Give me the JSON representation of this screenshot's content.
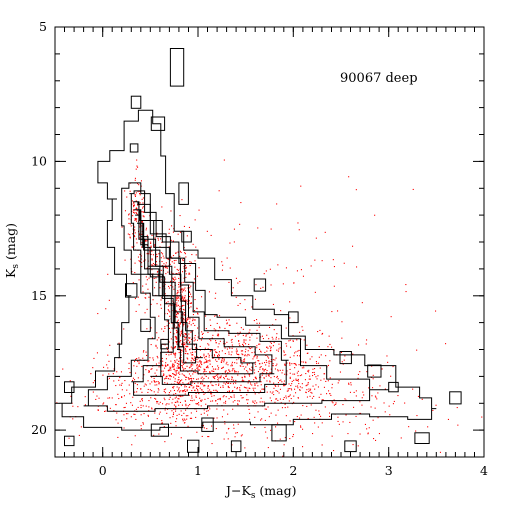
{
  "chart_data": {
    "type": "scatter",
    "title": "",
    "annotation": "90067 deep",
    "xlabel": {
      "main": "J−K",
      "sub": "s",
      "tail": " (mag)"
    },
    "ylabel": {
      "main": "K",
      "sub": "s",
      "tail": " (mag)"
    },
    "xlim": [
      -0.5,
      4
    ],
    "ylim": [
      21,
      5
    ],
    "y_inverted": true,
    "grid": false,
    "x_major_ticks": [
      0,
      1,
      2,
      3,
      4
    ],
    "y_major_ticks": [
      5,
      10,
      15,
      20
    ],
    "x_minor_step": 0.1,
    "y_minor_step": 1,
    "series": [
      {
        "kind": "points",
        "color": "#ff0000",
        "point_count_estimate": 2500,
        "description_regions": [
          {
            "x": 0.35,
            "y": 12.0,
            "sx": 0.05,
            "sy": 0.7,
            "n": 120
          },
          {
            "x": 0.55,
            "y": 13.8,
            "sx": 0.12,
            "sy": 0.8,
            "n": 160
          },
          {
            "x": 0.82,
            "y": 15.8,
            "sx": 0.08,
            "sy": 1.3,
            "n": 420
          },
          {
            "x": 0.95,
            "y": 17.6,
            "sx": 0.35,
            "sy": 0.7,
            "n": 380
          },
          {
            "x": 1.55,
            "y": 17.4,
            "sx": 0.4,
            "sy": 0.7,
            "n": 420
          },
          {
            "x": 0.6,
            "y": 18.6,
            "sx": 0.4,
            "sy": 0.7,
            "n": 300
          },
          {
            "x": 2.1,
            "y": 18.3,
            "sx": 0.45,
            "sy": 0.6,
            "n": 220
          },
          {
            "x": 1.4,
            "y": 16.0,
            "sx": 0.8,
            "sy": 2.2,
            "n": 260
          },
          {
            "x": 1.5,
            "y": 19.5,
            "sx": 1.0,
            "sy": 0.6,
            "n": 200
          }
        ]
      },
      {
        "kind": "contours",
        "color": "#000000",
        "levels": [
          {
            "level": 1,
            "points": [
              [
                0.0,
                10.0
              ],
              [
                0.15,
                9.6
              ],
              [
                0.3,
                8.5
              ],
              [
                0.45,
                8.1
              ],
              [
                0.6,
                8.6
              ],
              [
                0.62,
                9.8
              ],
              [
                0.7,
                11.2
              ],
              [
                0.8,
                12.6
              ],
              [
                0.9,
                13.3
              ],
              [
                1.1,
                13.6
              ],
              [
                1.25,
                14.4
              ],
              [
                1.45,
                15.0
              ],
              [
                1.7,
                15.5
              ],
              [
                1.9,
                15.7
              ],
              [
                2.0,
                16.5
              ],
              [
                2.25,
                17.0
              ],
              [
                2.6,
                17.2
              ],
              [
                2.9,
                17.6
              ],
              [
                3.25,
                18.4
              ],
              [
                3.4,
                18.8
              ],
              [
                3.5,
                19.2
              ],
              [
                3.4,
                19.6
              ],
              [
                3.0,
                19.5
              ],
              [
                2.6,
                19.4
              ],
              [
                2.2,
                19.6
              ],
              [
                1.8,
                19.8
              ],
              [
                1.3,
                19.7
              ],
              [
                0.8,
                19.9
              ],
              [
                0.4,
                20.0
              ],
              [
                0.0,
                19.9
              ],
              [
                -0.4,
                19.5
              ],
              [
                -0.45,
                19.0
              ],
              [
                -0.2,
                18.4
              ],
              [
                0.05,
                17.8
              ],
              [
                0.2,
                17.3
              ],
              [
                0.15,
                16.8
              ],
              [
                0.25,
                16.0
              ],
              [
                0.3,
                15.0
              ],
              [
                0.2,
                14.2
              ],
              [
                0.05,
                13.2
              ],
              [
                0.05,
                12.2
              ],
              [
                0.15,
                11.4
              ],
              [
                -0.05,
                10.8
              ]
            ]
          },
          {
            "level": 2,
            "points": [
              [
                0.2,
                11.0
              ],
              [
                0.35,
                10.8
              ],
              [
                0.45,
                11.2
              ],
              [
                0.55,
                12.2
              ],
              [
                0.7,
                13.0
              ],
              [
                0.9,
                13.8
              ],
              [
                1.05,
                14.8
              ],
              [
                1.1,
                15.7
              ],
              [
                1.3,
                15.8
              ],
              [
                1.7,
                16.1
              ],
              [
                2.05,
                16.6
              ],
              [
                2.1,
                17.6
              ],
              [
                2.6,
                18.1
              ],
              [
                3.0,
                18.5
              ],
              [
                2.6,
                18.9
              ],
              [
                2.0,
                19.0
              ],
              [
                1.4,
                19.1
              ],
              [
                0.8,
                19.2
              ],
              [
                0.3,
                19.3
              ],
              [
                -0.2,
                19.1
              ],
              [
                -0.1,
                18.5
              ],
              [
                0.2,
                18.0
              ],
              [
                0.4,
                17.4
              ],
              [
                0.55,
                16.6
              ],
              [
                0.55,
                15.8
              ],
              [
                0.45,
                14.9
              ],
              [
                0.35,
                14.2
              ],
              [
                0.25,
                13.3
              ],
              [
                0.2,
                12.4
              ]
            ]
          },
          {
            "level": 3,
            "points": [
              [
                0.28,
                11.2
              ],
              [
                0.38,
                11.1
              ],
              [
                0.5,
                11.9
              ],
              [
                0.62,
                12.8
              ],
              [
                0.8,
                13.6
              ],
              [
                0.92,
                14.5
              ],
              [
                0.98,
                15.6
              ],
              [
                1.15,
                16.3
              ],
              [
                1.5,
                16.4
              ],
              [
                1.8,
                16.7
              ],
              [
                1.95,
                17.4
              ],
              [
                1.9,
                18.3
              ],
              [
                1.5,
                18.6
              ],
              [
                1.1,
                18.6
              ],
              [
                0.7,
                18.7
              ],
              [
                0.35,
                18.7
              ],
              [
                0.3,
                18.2
              ],
              [
                0.55,
                17.6
              ],
              [
                0.68,
                16.8
              ],
              [
                0.7,
                15.9
              ],
              [
                0.6,
                15.0
              ],
              [
                0.45,
                14.2
              ],
              [
                0.35,
                13.3
              ],
              [
                0.3,
                12.3
              ]
            ]
          },
          {
            "level": 4,
            "points": [
              [
                0.32,
                11.5
              ],
              [
                0.42,
                11.6
              ],
              [
                0.58,
                12.7
              ],
              [
                0.75,
                13.6
              ],
              [
                0.88,
                14.6
              ],
              [
                0.92,
                15.8
              ],
              [
                1.1,
                16.6
              ],
              [
                1.45,
                16.9
              ],
              [
                1.75,
                17.2
              ],
              [
                1.8,
                17.9
              ],
              [
                1.5,
                18.2
              ],
              [
                1.1,
                18.2
              ],
              [
                0.75,
                18.3
              ],
              [
                0.5,
                18.0
              ],
              [
                0.72,
                17.1
              ],
              [
                0.76,
                16.0
              ],
              [
                0.68,
                15.0
              ],
              [
                0.5,
                14.0
              ],
              [
                0.38,
                12.9
              ]
            ]
          },
          {
            "level": 5,
            "points": [
              [
                0.33,
                11.8
              ],
              [
                0.45,
                12.2
              ],
              [
                0.62,
                13.2
              ],
              [
                0.78,
                14.2
              ],
              [
                0.86,
                15.2
              ],
              [
                0.88,
                16.3
              ],
              [
                1.0,
                17.0
              ],
              [
                1.3,
                17.3
              ],
              [
                1.6,
                17.5
              ],
              [
                1.55,
                17.9
              ],
              [
                1.15,
                17.9
              ],
              [
                0.85,
                17.8
              ],
              [
                0.78,
                17.0
              ],
              [
                0.8,
                16.0
              ],
              [
                0.72,
                15.0
              ],
              [
                0.55,
                13.9
              ],
              [
                0.4,
                12.8
              ]
            ]
          },
          {
            "level": 6,
            "points": [
              [
                0.34,
                12.0
              ],
              [
                0.46,
                12.9
              ],
              [
                0.65,
                13.9
              ],
              [
                0.8,
                15.0
              ],
              [
                0.85,
                16.0
              ],
              [
                0.92,
                16.8
              ],
              [
                1.05,
                17.3
              ],
              [
                0.9,
                17.5
              ],
              [
                0.8,
                16.9
              ],
              [
                0.78,
                16.0
              ],
              [
                0.7,
                15.1
              ],
              [
                0.55,
                14.2
              ],
              [
                0.4,
                13.1
              ]
            ]
          },
          {
            "level": 7,
            "points": [
              [
                0.36,
                12.3
              ],
              [
                0.5,
                13.3
              ],
              [
                0.7,
                14.5
              ],
              [
                0.82,
                15.6
              ],
              [
                0.86,
                16.5
              ],
              [
                0.82,
                16.9
              ],
              [
                0.78,
                16.2
              ],
              [
                0.72,
                15.3
              ],
              [
                0.58,
                14.3
              ],
              [
                0.42,
                13.2
              ]
            ]
          }
        ],
        "islands": [
          {
            "x": 0.35,
            "y": 7.8,
            "w": 0.1,
            "h": 0.45
          },
          {
            "x": 0.78,
            "y": 6.5,
            "w": 0.14,
            "h": 1.4
          },
          {
            "x": 0.58,
            "y": 8.6,
            "w": 0.14,
            "h": 0.5
          },
          {
            "x": 0.33,
            "y": 9.5,
            "w": 0.08,
            "h": 0.3
          },
          {
            "x": 0.85,
            "y": 11.2,
            "w": 0.1,
            "h": 0.8
          },
          {
            "x": 0.88,
            "y": 12.8,
            "w": 0.1,
            "h": 0.4
          },
          {
            "x": 0.3,
            "y": 14.8,
            "w": 0.12,
            "h": 0.5
          },
          {
            "x": 0.45,
            "y": 16.1,
            "w": 0.1,
            "h": 0.45
          },
          {
            "x": 0.65,
            "y": 16.8,
            "w": 0.08,
            "h": 0.35
          },
          {
            "x": 1.65,
            "y": 14.6,
            "w": 0.12,
            "h": 0.45
          },
          {
            "x": 2.0,
            "y": 15.8,
            "w": 0.1,
            "h": 0.4
          },
          {
            "x": 2.55,
            "y": 17.3,
            "w": 0.12,
            "h": 0.45
          },
          {
            "x": 2.85,
            "y": 17.8,
            "w": 0.14,
            "h": 0.45
          },
          {
            "x": 3.05,
            "y": 18.4,
            "w": 0.1,
            "h": 0.35
          },
          {
            "x": 3.7,
            "y": 18.8,
            "w": 0.12,
            "h": 0.45
          },
          {
            "x": -0.35,
            "y": 18.4,
            "w": 0.1,
            "h": 0.4
          },
          {
            "x": -0.35,
            "y": 20.4,
            "w": 0.1,
            "h": 0.35
          },
          {
            "x": 0.95,
            "y": 20.6,
            "w": 0.12,
            "h": 0.45
          },
          {
            "x": 1.4,
            "y": 20.6,
            "w": 0.1,
            "h": 0.4
          },
          {
            "x": 1.85,
            "y": 20.1,
            "w": 0.15,
            "h": 0.6
          },
          {
            "x": 2.6,
            "y": 20.6,
            "w": 0.12,
            "h": 0.4
          },
          {
            "x": 3.35,
            "y": 20.3,
            "w": 0.15,
            "h": 0.4
          },
          {
            "x": 1.1,
            "y": 19.8,
            "w": 0.12,
            "h": 0.5
          },
          {
            "x": 0.6,
            "y": 20.0,
            "w": 0.18,
            "h": 0.45
          }
        ]
      }
    ]
  }
}
